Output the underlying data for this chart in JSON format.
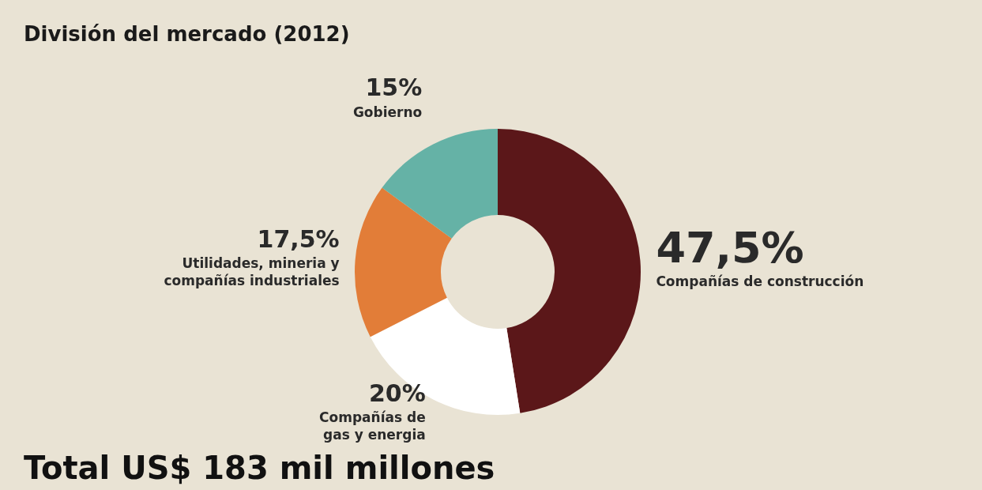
{
  "chart_data": {
    "type": "donut",
    "title": "División del mercado (2012)",
    "categories": [
      "Compañías de construcción",
      "Compañías de\ngas y energia",
      "Utilidades, mineria y\ncompañías industriales",
      "Gobierno"
    ],
    "values": [
      47.5,
      20,
      17.5,
      15
    ],
    "colors": [
      "#5b1719",
      "#ffffff",
      "#e27d38",
      "#65b2a6"
    ],
    "value_labels": [
      "47,5%",
      "20%",
      "17,5%",
      "15%"
    ],
    "annotations": [
      "Total US$ 183 mil millones"
    ]
  }
}
